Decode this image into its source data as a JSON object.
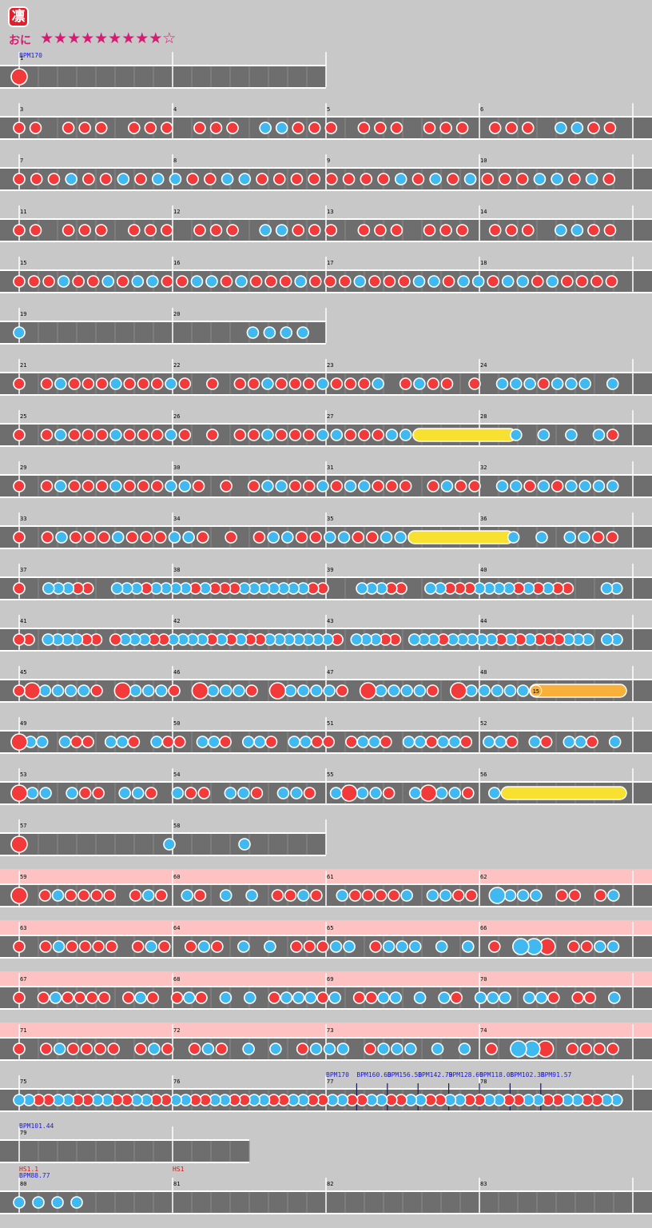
{
  "header": {
    "title_glyph": "凛",
    "difficulty_label": "おに",
    "stars": "★★★★★★★★★☆",
    "colors": {
      "don": "#f23a3a",
      "ka": "#3fb9f0",
      "roll": "#f8e030",
      "balloon": "#f8b03a",
      "lane": "#6e6e6e",
      "highlight": "#ffc2c2"
    }
  },
  "rows": [
    {
      "measures": [
        1
      ],
      "len": 2,
      "markers": [
        {
          "m": 0,
          "t": "bpm",
          "text": "BPM170"
        }
      ],
      "notes": "B"
    },
    {
      "measures": [
        3,
        4,
        5,
        6
      ],
      "len": 4,
      "notes": "ddxdddxdddxdddxkkdddxdddxdddxdddxkkdd"
    },
    {
      "measures": [
        7,
        8,
        9,
        10
      ],
      "len": 4,
      "notes": "dddkddkdkkddkkddddddddkdkdkdddkkdkd"
    },
    {
      "measures": [
        11,
        12,
        13,
        14
      ],
      "len": 4,
      "notes": "ddxdddxdddxdddxkkdddxdddxdddxdddxkkdd"
    },
    {
      "measures": [
        15,
        16,
        17,
        18
      ],
      "len": 4,
      "notes": "dddkddkdkkddkkdkdddkdddkdddkkdkkdkkdkdddd"
    },
    {
      "measures": [
        19,
        20
      ],
      "len": 2,
      "notes": "kxxxxxxxxxxxxxkkkk"
    },
    {
      "measures": [
        21,
        22,
        23,
        24
      ],
      "len": 4,
      "notes": "dxdkdddkdddkdxdxddkdddkdddkxdkddxdxkkkdkkkxk"
    },
    {
      "measures": [
        25,
        26,
        27,
        28
      ],
      "len": 4,
      "notes": "dxdkdddkdddkdxdxddkdddkkdddkkRRRRRRRkxkxkxkd"
    },
    {
      "measures": [
        29,
        30,
        31,
        32
      ],
      "len": 4,
      "notes": "dxdkdddkdddkkdxdxdkkddkdkkdddxdkddxkkdkdkkkk"
    },
    {
      "measures": [
        33,
        34,
        35,
        36
      ],
      "len": 4,
      "notes": "dxdkdddkdddkkdxdxdkkddkkddkkRRRRRRRkxkxkkdd"
    },
    {
      "measures": [
        37,
        38,
        39,
        40
      ],
      "len": 4,
      "notes": "dxxkkkddxxkkkdkkkkdkdddkkkkkkkddxxxkkkddxxkkdddkkkkdkdkddxxxkk"
    },
    {
      "measures": [
        41,
        42,
        43,
        44
      ],
      "len": 4,
      "notes": "ddxkkkkddxdkkkddkkkkdkdkddkkkkkkkdxkkkddxkkkdkkkkkdkdkdddkkkxkk"
    },
    {
      "measures": [
        45,
        46,
        47,
        48
      ],
      "len": 4,
      "notes": "dDkkkkdxDkkkdxDkkkdxDkkkkdxDkkkkdxDkkkkkLLLLLLL",
      "balloon": "15"
    },
    {
      "measures": [
        49,
        50,
        51,
        52
      ],
      "len": 4,
      "notes": "Dkkxkddxkkdxkddxkkdxkkdxkkddxdkkdxkkdkkdxkkdxkdxkkdxk"
    },
    {
      "measures": [
        53,
        54,
        55,
        56
      ],
      "len": 4,
      "notes": "DkkxkddxkkdxkddxkkdxkkdxkDkkdxkDkkdxkRRRRRRRRR"
    },
    {
      "measures": [
        57,
        58
      ],
      "len": 2,
      "notes": "Dxxxxxxxkxxxkxxx"
    },
    {
      "measures": [
        59,
        60,
        61,
        62
      ],
      "len": 4,
      "hl": true,
      "notes": "DxdkddddxdkdxkdxkxkxddkdxkddddkxkkddxKkkkxddxdk"
    },
    {
      "measures": [
        63,
        64,
        65,
        66
      ],
      "len": 4,
      "hl": true,
      "notes": "dxdkddddxdkdxdkdxkxkxdddkkxdkkkxkxkxdxKKDxddkk"
    },
    {
      "measures": [
        67,
        68,
        69,
        70
      ],
      "len": 4,
      "hl": true,
      "notes": "dxdkddddxdkdxdkdxkxkxdkkkdkxddkkxkxkdxkkkxkkdxddxk"
    },
    {
      "measures": [
        71,
        72,
        73,
        74
      ],
      "len": 4,
      "hl": true,
      "notes": "dxdkddddxdkdxdkdxkxkxdkkkxdkkkxkxkxdxKKDxdddd"
    },
    {
      "measures": [
        75,
        76,
        77,
        78
      ],
      "len": 4,
      "markers": [
        {
          "m": 2,
          "t": "bpm",
          "text": "BPM170"
        },
        {
          "m": 2.2,
          "t": "bpm",
          "text": "BPM160.60"
        },
        {
          "m": 2.4,
          "t": "bpm",
          "text": "BPM156.50"
        },
        {
          "m": 2.6,
          "t": "bpm",
          "text": "BPM142.79"
        },
        {
          "m": 2.8,
          "t": "bpm",
          "text": "BPM128.60"
        },
        {
          "m": 3,
          "t": "bpm",
          "text": "BPM118.08"
        },
        {
          "m": 3.2,
          "t": "bpm",
          "text": "BPM102.38"
        },
        {
          "m": 3.4,
          "t": "bpm",
          "text": "BPM91.57"
        }
      ],
      "notes": "kkddkkddkkddkkddkkddkkddkkddkkddkkddkkddkkddkkddkkddkkddkkddkk"
    },
    {
      "measures": [
        79
      ],
      "len": 1.5,
      "markers": [
        {
          "m": 0,
          "t": "bpm",
          "text": "BPM101.44"
        }
      ],
      "notes": ""
    },
    {
      "measures": [
        80,
        81,
        82,
        83
      ],
      "len": 4,
      "markers": [
        {
          "m": 0,
          "t": "hs",
          "text": "HS1.1"
        },
        {
          "m": 0,
          "t": "bpm2",
          "text": "BPM88.77"
        },
        {
          "m": 1,
          "t": "hs",
          "text": "HS1"
        }
      ],
      "notes": "kkkk"
    }
  ]
}
